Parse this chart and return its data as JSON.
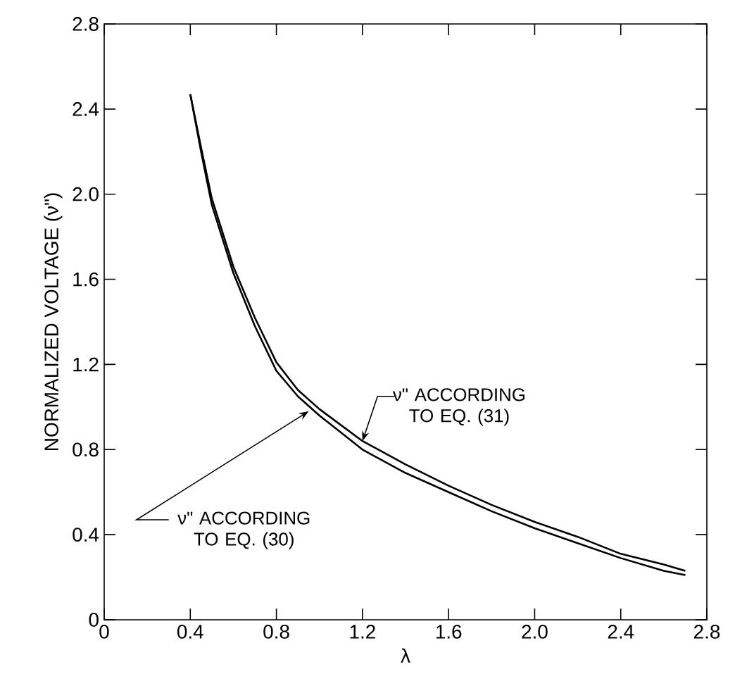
{
  "chart_data": {
    "type": "line",
    "xlabel": "λ",
    "ylabel": "NORMALIZED VOLTAGE (ν\")",
    "xlim": [
      0,
      2.8
    ],
    "ylim": [
      0,
      2.8
    ],
    "xticks": [
      0,
      0.4,
      0.8,
      1.2,
      1.6,
      {
        "value": 2,
        "label": "2.0"
      },
      2.4,
      2.8
    ],
    "yticks": [
      0,
      0.4,
      0.8,
      1.2,
      1.6,
      {
        "value": 2,
        "label": "2.0"
      },
      2.4,
      2.8
    ],
    "grid": false,
    "marker": "none",
    "line_style": "solid",
    "series": [
      {
        "color": "#000000",
        "x": [
          0.4,
          0.45,
          0.5,
          0.6,
          0.7,
          0.8,
          0.9,
          1.0,
          1.2,
          1.4,
          1.6,
          1.8,
          2.0,
          2.2,
          2.4,
          2.6,
          2.7
        ],
        "values": [
          2.47,
          2.2,
          1.95,
          1.63,
          1.38,
          1.17,
          1.05,
          0.96,
          0.8,
          0.69,
          0.6,
          0.51,
          0.43,
          0.36,
          0.29,
          0.23,
          0.21
        ]
      },
      {
        "color": "#000000",
        "x": [
          0.4,
          0.45,
          0.5,
          0.6,
          0.7,
          0.8,
          0.9,
          1.0,
          1.2,
          1.4,
          1.6,
          1.8,
          2.0,
          2.2,
          2.4,
          2.6,
          2.7
        ],
        "values": [
          2.47,
          2.22,
          1.98,
          1.66,
          1.42,
          1.21,
          1.08,
          0.99,
          0.84,
          0.73,
          0.63,
          0.54,
          0.46,
          0.39,
          0.31,
          0.26,
          0.23
        ]
      }
    ],
    "annotations": [
      {
        "text": "ν\" ACCORDING TO EQ. (31)",
        "x": 1.2,
        "y": 0.84
      },
      {
        "text": "ν\" ACCORDING TO EQ. (30)",
        "x": 0.95,
        "y": 0.98
      }
    ]
  }
}
